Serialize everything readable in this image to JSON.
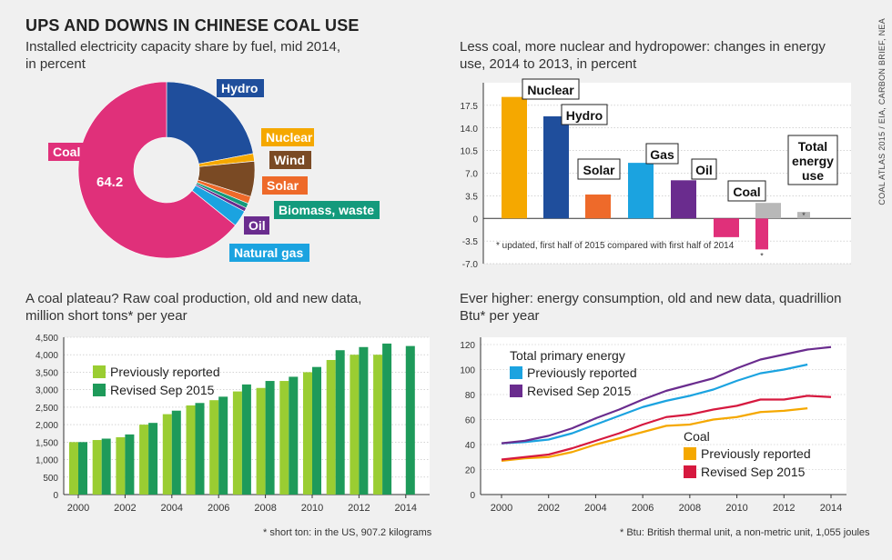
{
  "title": "UPS AND DOWNS IN CHINESE COAL USE",
  "source": "COAL ATLAS 2015 / EIA, CARBON BRIEF, NEA",
  "charts": {
    "pie": {
      "subtitle": "Installed electricity capacity share by fuel, mid 2014, in percent",
      "center_value": "64.2"
    },
    "bars": {
      "subtitle": "Less coal, more nuclear and hydropower: changes in energy use, 2014 to 2013, in percent",
      "footnote": "* updated, first half of 2015 compared with first half of 2014",
      "star": "*"
    },
    "production": {
      "subtitle": "A coal plateau? Raw coal production, old and new data, million short tons* per year",
      "footnote": "* short ton: in the US, 907.2 kilograms"
    },
    "consumption": {
      "subtitle": "Ever higher: energy consumption, old and new data, quadrillion Btu* per year",
      "footnote": "* Btu: British thermal unit, a non-metric unit, 1,055 joules",
      "legend_group1": "Total primary energy",
      "legend_group2": "Coal"
    }
  },
  "chart_data": [
    {
      "type": "pie",
      "title": "Installed electricity capacity share by fuel, mid 2014, in percent",
      "slices": [
        {
          "label": "Hydro",
          "value": 22.0,
          "color": "#1f4e9c"
        },
        {
          "label": "Nuclear",
          "value": 1.4,
          "color": "#f5a800"
        },
        {
          "label": "Wind",
          "value": 6.5,
          "color": "#7a4a24"
        },
        {
          "label": "Solar",
          "value": 1.3,
          "color": "#ee6a2a"
        },
        {
          "label": "Biomass, waste",
          "value": 0.9,
          "color": "#139a7c"
        },
        {
          "label": "Oil",
          "value": 0.7,
          "color": "#6a2c8e"
        },
        {
          "label": "Natural gas",
          "value": 3.0,
          "color": "#1ba3e0"
        },
        {
          "label": "Coal",
          "value": 64.2,
          "color": "#e0307a"
        }
      ]
    },
    {
      "type": "bar",
      "title": "Less coal, more nuclear and hydropower: changes in energy use, 2014 to 2013, in percent",
      "ylim": [
        -7.0,
        21.0
      ],
      "yticks": [
        "17.5",
        "14.0",
        "10.5",
        "7.0",
        "3.5",
        "0",
        "-3.5",
        "-7.0"
      ],
      "series": [
        {
          "name": "Nuclear",
          "values": [
            18.8,
            15.8
          ],
          "colors": [
            "#f5a800",
            "#1f4e9c"
          ]
        }
      ],
      "bars": [
        {
          "label": "Nuclear",
          "value": 18.8,
          "color": "#f5a800"
        },
        {
          "label": "Hydro",
          "value": 15.8,
          "color": "#1f4e9c"
        },
        {
          "label": "Solar",
          "value": 3.7,
          "color": "#ee6a2a"
        },
        {
          "label": "Gas",
          "value": 8.6,
          "color": "#1ba3e0"
        },
        {
          "label": "Oil",
          "value": 5.9,
          "color": "#6a2c8e"
        },
        {
          "label": "Coal",
          "value": -2.9,
          "updated": -4.8,
          "color": "#e0307a"
        },
        {
          "label": "Total energy use",
          "value": 2.4,
          "updated": 1.0,
          "color": "#b8b8b8"
        }
      ]
    },
    {
      "type": "bar",
      "title": "A coal plateau? Raw coal production, old and new data, million short tons* per year",
      "ylim": [
        0,
        4500
      ],
      "yticks": [
        "0",
        "500",
        "1,000",
        "1,500",
        "2,000",
        "2,500",
        "3,000",
        "3,500",
        "4,000",
        "4,500"
      ],
      "xticks": [
        "2000",
        "2002",
        "2004",
        "2006",
        "2008",
        "2010",
        "2012",
        "2014"
      ],
      "categories": [
        "2000",
        "2001",
        "2002",
        "2003",
        "2004",
        "2005",
        "2006",
        "2007",
        "2008",
        "2009",
        "2010",
        "2011",
        "2012",
        "2013",
        "2014"
      ],
      "series": [
        {
          "name": "Previously reported",
          "color": "#9acd32",
          "values": [
            1500,
            1560,
            1640,
            2000,
            2300,
            2550,
            2700,
            2950,
            3050,
            3250,
            3500,
            3850,
            4000,
            4000,
            null
          ]
        },
        {
          "name": "Revised Sep 2015",
          "color": "#1e9a5a",
          "values": [
            1500,
            1600,
            1720,
            2050,
            2400,
            2620,
            2800,
            3150,
            3250,
            3370,
            3650,
            4130,
            4220,
            4320,
            4250
          ]
        }
      ]
    },
    {
      "type": "line",
      "title": "Ever higher: energy consumption, old and new data, quadrillion Btu* per year",
      "ylim": [
        0,
        120
      ],
      "yticks": [
        "0",
        "20",
        "40",
        "60",
        "80",
        "100",
        "120"
      ],
      "xticks": [
        "2000",
        "2002",
        "2004",
        "2006",
        "2008",
        "2010",
        "2012",
        "2014"
      ],
      "x": [
        2000,
        2001,
        2002,
        2003,
        2004,
        2005,
        2006,
        2007,
        2008,
        2009,
        2010,
        2011,
        2012,
        2013,
        2014
      ],
      "series": [
        {
          "name": "Previously reported",
          "group": "Total primary energy",
          "color": "#1ba3e0",
          "values": [
            41,
            42,
            44,
            49,
            56,
            63,
            70,
            75,
            79,
            84,
            91,
            97,
            100,
            104,
            null
          ]
        },
        {
          "name": "Revised Sep 2015",
          "group": "Total primary energy",
          "color": "#6a2c8e",
          "values": [
            41,
            43,
            47,
            53,
            61,
            68,
            76,
            83,
            88,
            93,
            101,
            108,
            112,
            116,
            118
          ]
        },
        {
          "name": "Previously reported",
          "group": "Coal",
          "color": "#f5a800",
          "values": [
            27,
            29,
            30,
            34,
            40,
            45,
            50,
            55,
            56,
            60,
            62,
            66,
            67,
            69,
            null
          ]
        },
        {
          "name": "Revised Sep 2015",
          "group": "Coal",
          "color": "#d6193f",
          "values": [
            28,
            30,
            32,
            37,
            43,
            49,
            56,
            62,
            64,
            68,
            71,
            76,
            76,
            79,
            78
          ]
        }
      ]
    }
  ]
}
